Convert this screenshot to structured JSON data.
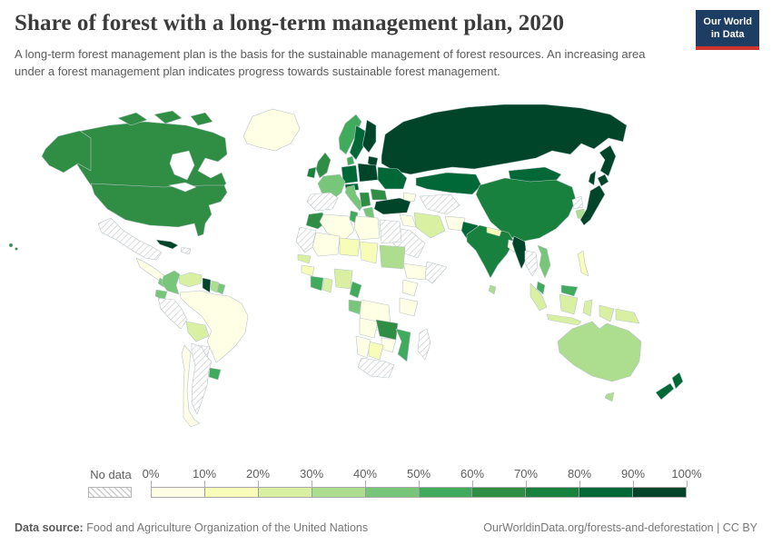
{
  "header": {
    "title": "Share of forest with a long-term management plan, 2020",
    "subtitle": "A long-term forest management plan is the basis for the sustainable management of forest resources. An increasing area under a forest management plan indicates progress towards sustainable forest management."
  },
  "logo": {
    "line1": "Our World",
    "line2": "in Data",
    "bg_color": "#1d3d63",
    "accent_color": "#d0342c"
  },
  "legend": {
    "no_data_label": "No data",
    "ticks": [
      "0%",
      "10%",
      "20%",
      "30%",
      "40%",
      "50%",
      "60%",
      "70%",
      "80%",
      "90%",
      "100%"
    ],
    "colors": [
      "#ffffe5",
      "#f7fcb9",
      "#d9f0a3",
      "#addd8e",
      "#78c679",
      "#41ab5d",
      "#2f8e44",
      "#17813d",
      "#006837",
      "#004529"
    ],
    "no_data_hatch_color": "#cccccc",
    "border_color": "#b9c4c9"
  },
  "footer": {
    "source_label": "Data source:",
    "source_text": " Food and Agriculture Organization of the United Nations",
    "link_text": "OurWorldinData.org/forests-and-deforestation | CC BY"
  },
  "chart_data": {
    "type": "choropleth_map",
    "title": "Share of forest with a long-term management plan, 2020",
    "metric": "Share of forest area with a long-term forest management plan",
    "unit": "%",
    "year": 2020,
    "bin_size": 10,
    "domain": [
      0,
      100
    ],
    "no_data_style": "hatched",
    "countries": {
      "greenland": {
        "name": "Greenland",
        "value": 5
      },
      "canada": {
        "name": "Canada",
        "value": 65
      },
      "united-states": {
        "name": "United States",
        "value": 65
      },
      "mexico": {
        "name": "Mexico",
        "value": null
      },
      "cuba": {
        "name": "Cuba",
        "value": 95
      },
      "haiti": {
        "name": "Haiti",
        "value": null
      },
      "guatemala": {
        "name": "Guatemala",
        "value": 5
      },
      "costa-rica": {
        "name": "Costa Rica",
        "value": 45
      },
      "colombia": {
        "name": "Colombia",
        "value": 45
      },
      "venezuela": {
        "name": "Venezuela",
        "value": 25
      },
      "guyana": {
        "name": "Guyana",
        "value": 95
      },
      "suriname": {
        "name": "Suriname",
        "value": 35
      },
      "french-guiana": {
        "name": "French Guiana",
        "value": 45
      },
      "ecuador": {
        "name": "Ecuador",
        "value": 45
      },
      "peru": {
        "name": "Peru",
        "value": null
      },
      "brazil": {
        "name": "Brazil",
        "value": 5
      },
      "bolivia": {
        "name": "Bolivia",
        "value": 25
      },
      "paraguay": {
        "name": "Paraguay",
        "value": null
      },
      "uruguay": {
        "name": "Uruguay",
        "value": 55
      },
      "argentina": {
        "name": "Argentina",
        "value": null
      },
      "chile": {
        "name": "Chile",
        "value": 5
      },
      "iceland": {
        "name": "Iceland",
        "value": 85
      },
      "norway": {
        "name": "Norway",
        "value": 55
      },
      "sweden": {
        "name": "Sweden",
        "value": 85
      },
      "finland": {
        "name": "Finland",
        "value": 95
      },
      "latvia": {
        "name": "Latvia",
        "value": 95
      },
      "united-kingdom": {
        "name": "United Kingdom",
        "value": 65
      },
      "ireland": {
        "name": "Ireland",
        "value": 75
      },
      "denmark": {
        "name": "Denmark",
        "value": 55
      },
      "germany": {
        "name": "Germany",
        "value": 85
      },
      "france": {
        "name": "France",
        "value": 45
      },
      "spain": {
        "name": "Spain",
        "value": null
      },
      "italy": {
        "name": "Italy",
        "value": 45
      },
      "austria": {
        "name": "Austria",
        "value": 85
      },
      "poland": {
        "name": "Poland",
        "value": 95
      },
      "ukraine": {
        "name": "Ukraine",
        "value": 85
      },
      "romania": {
        "name": "Romania",
        "value": 65
      },
      "serbia": {
        "name": "Serbia",
        "value": 65
      },
      "greece": {
        "name": "Greece",
        "value": 45
      },
      "turkey": {
        "name": "Turkey",
        "value": 95
      },
      "georgia": {
        "name": "Georgia",
        "value": 5
      },
      "russia": {
        "name": "Russia",
        "value": 95
      },
      "kazakhstan": {
        "name": "Kazakhstan",
        "value": 85
      },
      "turkmenistan": {
        "name": "Turkmenistan",
        "value": null
      },
      "mongolia": {
        "name": "Mongolia",
        "value": 85
      },
      "china": {
        "name": "China",
        "value": 75
      },
      "north-korea": {
        "name": "North Korea",
        "value": null
      },
      "south-korea": {
        "name": "South Korea",
        "value": 35
      },
      "japan": {
        "name": "Japan",
        "value": 95
      },
      "india": {
        "name": "India",
        "value": 75
      },
      "pakistan": {
        "name": "Pakistan",
        "value": 85
      },
      "afghanistan": {
        "name": "Afghanistan",
        "value": 5
      },
      "iran": {
        "name": "Iran",
        "value": 25
      },
      "iraq": {
        "name": "Iraq",
        "value": 5
      },
      "saudi-arabia": {
        "name": "Saudi Arabia",
        "value": null
      },
      "nepal": {
        "name": "Nepal",
        "value": 15
      },
      "bangladesh": {
        "name": "Bangladesh",
        "value": 5
      },
      "sri-lanka": {
        "name": "Sri Lanka",
        "value": 35
      },
      "myanmar": {
        "name": "Myanmar",
        "value": 95
      },
      "thailand": {
        "name": "Thailand",
        "value": null
      },
      "vietnam": {
        "name": "Vietnam",
        "value": 45
      },
      "malaysia": {
        "name": "Malaysia",
        "value": 55
      },
      "indonesia": {
        "name": "Indonesia",
        "value": 25
      },
      "philippines": {
        "name": "Philippines",
        "value": 15
      },
      "papua-new-guinea": {
        "name": "Papua New Guinea",
        "value": 25
      },
      "morocco": {
        "name": "Morocco",
        "value": 65
      },
      "mauritania": {
        "name": "Mauritania",
        "value": null
      },
      "algeria": {
        "name": "Algeria",
        "value": 5
      },
      "tunisia": {
        "name": "Tunisia",
        "value": 55
      },
      "libya": {
        "name": "Libya",
        "value": 5
      },
      "egypt": {
        "name": "Egypt",
        "value": null
      },
      "mali": {
        "name": "Mali",
        "value": 5
      },
      "niger": {
        "name": "Niger",
        "value": 15
      },
      "chad": {
        "name": "Chad",
        "value": 15
      },
      "sudan": {
        "name": "Sudan",
        "value": 35
      },
      "ethiopia": {
        "name": "Ethiopia",
        "value": 5
      },
      "somalia": {
        "name": "Somalia",
        "value": null
      },
      "senegal": {
        "name": "Senegal",
        "value": 25
      },
      "guinea": {
        "name": "Guinea",
        "value": 15
      },
      "cote-divoire": {
        "name": "Cote d'Ivoire",
        "value": 55
      },
      "ghana": {
        "name": "Ghana",
        "value": 25
      },
      "nigeria": {
        "name": "Nigeria",
        "value": 25
      },
      "cameroon": {
        "name": "Cameroon",
        "value": 55
      },
      "gabon": {
        "name": "Gabon",
        "value": 45
      },
      "democratic-republic-of-congo": {
        "name": "Democratic Republic of Congo",
        "value": 5
      },
      "kenya": {
        "name": "Kenya",
        "value": 5
      },
      "tanzania": {
        "name": "Tanzania",
        "value": 5
      },
      "angola": {
        "name": "Angola",
        "value": 5
      },
      "zambia": {
        "name": "Zambia",
        "value": 65
      },
      "mozambique": {
        "name": "Mozambique",
        "value": 55
      },
      "zimbabwe": {
        "name": "Zimbabwe",
        "value": 5
      },
      "botswana": {
        "name": "Botswana",
        "value": 15
      },
      "namibia": {
        "name": "Namibia",
        "value": 5
      },
      "south-africa": {
        "name": "South Africa",
        "value": null
      },
      "madagascar": {
        "name": "Madagascar",
        "value": null
      },
      "australia": {
        "name": "Australia",
        "value": 35
      },
      "new-zealand": {
        "name": "New Zealand",
        "value": 85
      }
    }
  }
}
